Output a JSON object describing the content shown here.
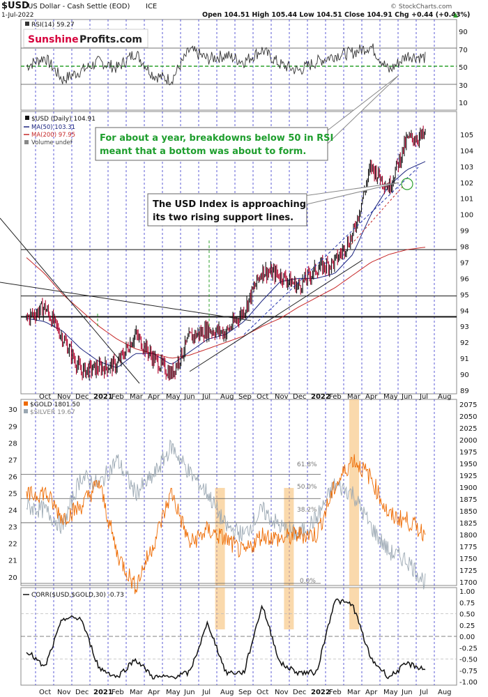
{
  "header": {
    "symbol": "$USD",
    "name": "US Dollar - Cash Settle (EOD)",
    "exchange": "ICE",
    "date": "1-Jul-2022",
    "ohlc": "Open 104.51  High 105.44  Low 104.51  Close 104.91  Chg +0.44 (+0.43%)",
    "up_arrow": "▲",
    "credit": "© StockCharts.com"
  },
  "colors": {
    "grid": "#3333cc",
    "usd_up": "#111111",
    "usd_down": "#b0002a",
    "ma50": "#1a237e",
    "ma200": "#c62828",
    "gold": "#ee6a00",
    "silver": "#9aa7b2",
    "rsi_green": "#2ca02c",
    "highlight": "#f5b968",
    "annot_green": "#1e9e2d",
    "brand_red": "#d6003c"
  },
  "rsi_panel": {
    "legend": "RSI(14) 59.27",
    "brand_part1": "Sunshine",
    "brand_part2": "Profits.com",
    "ticks": [
      "90",
      "70",
      "50",
      "30",
      "10"
    ]
  },
  "price_panel": {
    "legend_usd": "$USD (Daily) 104.91",
    "legend_ma50": "MA(50) 103.31",
    "legend_ma200": "MA(200) 97.95",
    "legend_volume": "Volume undef",
    "ticks": [
      "105",
      "104",
      "103",
      "102",
      "101",
      "100",
      "99",
      "98",
      "97",
      "96",
      "95",
      "94",
      "93",
      "92",
      "91",
      "90",
      "89"
    ],
    "annotation1_line1": "For about a year, breakdowns below 50 in RSI",
    "annotation1_line2": "meant that a bottom was about to form.",
    "annotation2_line1": "The USD Index is approaching",
    "annotation2_line2": "its two rising support lines."
  },
  "gold_panel": {
    "legend_gold": "$GOLD 1801.50",
    "legend_silver": "$SILVER 19.67",
    "left_ticks": [
      "30",
      "29",
      "28",
      "27",
      "26",
      "25",
      "24",
      "23",
      "22",
      "21",
      "20"
    ],
    "right_ticks": [
      "2075",
      "2050",
      "2025",
      "2000",
      "1975",
      "1950",
      "1925",
      "1900",
      "1875",
      "1850",
      "1825",
      "1800",
      "1775",
      "1750",
      "1725",
      "1700"
    ],
    "fib_618": "61.8%",
    "fib_50": "50.0%",
    "fib_382": "38.2%",
    "fib_0": "0.0%"
  },
  "corr_panel": {
    "legend": "CORR($USD,$GOLD,30) -0.73",
    "ticks": [
      "1.00",
      "0.75",
      "0.50",
      "0.25",
      "0.00",
      "-0.25",
      "-0.50",
      "-0.75",
      "-1.00"
    ]
  },
  "x_axis": {
    "labels": [
      "Oct",
      "Nov",
      "Dec",
      "2021",
      "Feb",
      "Mar",
      "Apr",
      "May",
      "Jun",
      "Jul",
      "Aug",
      "Sep",
      "Oct",
      "Nov",
      "Dec",
      "2022",
      "Feb",
      "Mar",
      "Apr",
      "May",
      "Jun",
      "Jul",
      "Aug"
    ],
    "mid_labels": [
      "Oct",
      "Nov",
      "Dec",
      "2021",
      "Feb",
      "Mar",
      "Apr",
      "May",
      "Jun",
      "Jul",
      "Aug",
      "Sep",
      "Oct",
      "Nov",
      "Dec",
      "2022",
      "Feb",
      "Mar",
      "Apr",
      "May",
      "Jun",
      "Jul",
      "Aug"
    ]
  },
  "chart_data": {
    "type": "line",
    "title": "$USD US Dollar - Cash Settle (EOD) ICE",
    "x": [
      "Sep-20",
      "Oct-20",
      "Nov-20",
      "Dec-20",
      "Jan-21",
      "Feb-21",
      "Mar-21",
      "Apr-21",
      "May-21",
      "Jun-21",
      "Jul-21",
      "Aug-21",
      "Sep-21",
      "Oct-21",
      "Nov-21",
      "Dec-21",
      "Jan-22",
      "Feb-22",
      "Mar-22",
      "Apr-22",
      "May-22",
      "Jun-22",
      "Jul-22"
    ],
    "series": [
      {
        "name": "$USD (Daily)",
        "values": [
          93.5,
          94.2,
          92.3,
          90.2,
          90.4,
          90.6,
          92.5,
          91.0,
          90.0,
          92.3,
          92.8,
          92.6,
          94.0,
          96.5,
          96.2,
          95.5,
          96.6,
          97.0,
          98.7,
          103.0,
          101.7,
          104.7,
          104.91
        ]
      },
      {
        "name": "MA(50)",
        "values": [
          93.5,
          93.3,
          92.7,
          91.6,
          90.8,
          90.4,
          91.3,
          91.3,
          90.6,
          91.4,
          92.2,
          92.5,
          93.3,
          94.6,
          95.8,
          96.0,
          96.0,
          96.3,
          97.5,
          100.0,
          101.8,
          102.8,
          103.31
        ]
      },
      {
        "name": "MA(200)",
        "values": [
          97.3,
          96.3,
          95.0,
          94.0,
          93.0,
          92.2,
          91.6,
          91.3,
          91.0,
          91.2,
          91.6,
          92.0,
          92.4,
          93.0,
          93.5,
          94.2,
          94.8,
          95.4,
          96.2,
          97.0,
          97.5,
          97.8,
          97.95
        ]
      },
      {
        "name": "$GOLD",
        "values": [
          1880,
          1890,
          1835,
          1860,
          1910,
          1760,
          1690,
          1780,
          1890,
          1780,
          1810,
          1790,
          1760,
          1800,
          1790,
          1800,
          1800,
          1900,
          1960,
          1920,
          1840,
          1830,
          1801.5
        ]
      },
      {
        "name": "$SILVER",
        "values": [
          24.2,
          24.0,
          23.0,
          26.0,
          25.5,
          27.0,
          25.0,
          26.0,
          27.8,
          26.2,
          25.0,
          23.0,
          22.5,
          24.0,
          23.0,
          22.5,
          23.5,
          25.5,
          25.0,
          23.0,
          21.5,
          21.0,
          19.67
        ]
      },
      {
        "name": "RSI(14)",
        "values": [
          50,
          60,
          35,
          45,
          55,
          48,
          65,
          40,
          35,
          68,
          58,
          62,
          55,
          68,
          52,
          45,
          55,
          62,
          65,
          72,
          45,
          62,
          59.27
        ]
      },
      {
        "name": "CORR($USD,$GOLD,30)",
        "values": [
          -0.3,
          -0.7,
          0.4,
          0.4,
          -0.7,
          -0.9,
          -0.5,
          -0.9,
          -0.9,
          -0.8,
          0.3,
          -0.8,
          -0.8,
          0.7,
          -0.6,
          -0.8,
          -0.8,
          0.8,
          0.7,
          -0.5,
          -0.9,
          -0.6,
          -0.73
        ]
      }
    ],
    "ylim_usd": [
      89,
      106
    ],
    "ylim_gold": [
      1700,
      2075
    ],
    "ylim_silver": [
      19.7,
      30.3
    ],
    "ylim_rsi": [
      0,
      100
    ],
    "ylim_corr": [
      -1,
      1
    ],
    "horizontal_levels_usd": [
      97.8,
      94.9,
      93.6
    ],
    "highlight_periods": [
      "Aug-21",
      "Nov-21",
      "Mar-22"
    ]
  }
}
